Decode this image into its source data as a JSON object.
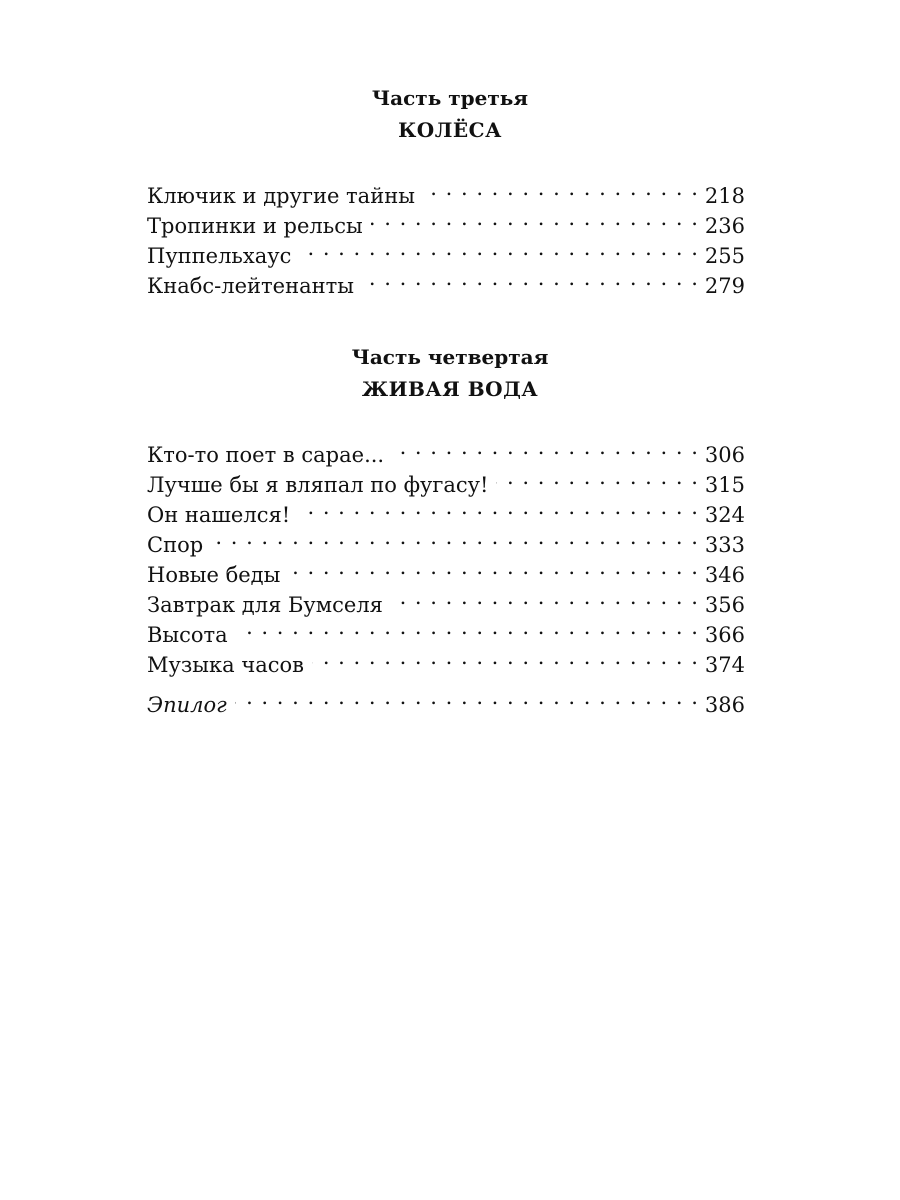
{
  "parts": [
    {
      "label": "Часть третья",
      "title": "КОЛЁСА",
      "entries": [
        {
          "title": "Ключик и другие тайны",
          "page": "218"
        },
        {
          "title": "Тропинки и рельсы",
          "page": "236"
        },
        {
          "title": "Пуппельхаус",
          "page": "255"
        },
        {
          "title": "Кнабс-лейтенанты",
          "page": "279"
        }
      ]
    },
    {
      "label": "Часть четвертая",
      "title": "ЖИВАЯ ВОДА",
      "entries": [
        {
          "title": "Кто-то поет в сарае...",
          "page": "306"
        },
        {
          "title": "Лучше бы я вляпал по фугасу!",
          "page": "315"
        },
        {
          "title": "Он нашелся!",
          "page": "324"
        },
        {
          "title": "Спор",
          "page": "333"
        },
        {
          "title": "Новые беды",
          "page": "346"
        },
        {
          "title": "Завтрак для Бумселя",
          "page": "356"
        },
        {
          "title": "Высота",
          "page": "366"
        },
        {
          "title": "Музыка часов",
          "page": "374"
        }
      ]
    }
  ],
  "epilogue": {
    "title": "Эпилог",
    "page": "386"
  }
}
